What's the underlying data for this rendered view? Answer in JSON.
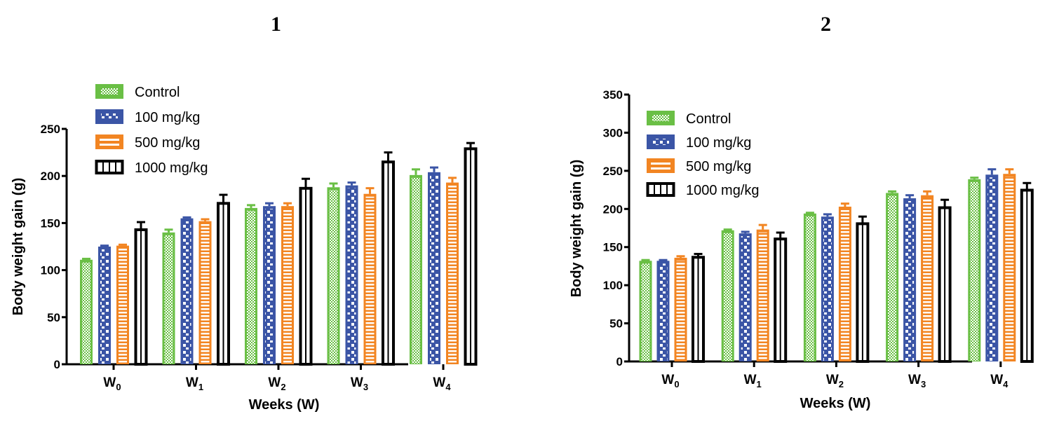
{
  "panels": [
    {
      "label": "1"
    },
    {
      "label": "2"
    }
  ],
  "series_style": [
    {
      "name": "Control",
      "color": "#6abf45",
      "pattern": "checker"
    },
    {
      "name": "100 mg/kg",
      "color": "#3b55a6",
      "pattern": "squares"
    },
    {
      "name": "500 mg/kg",
      "color": "#f28522",
      "pattern": "hstripes"
    },
    {
      "name": "1000 mg/kg",
      "color": "#000000",
      "pattern": "vstripes"
    }
  ],
  "chart_data": [
    {
      "type": "bar",
      "title": "1",
      "xlabel": "Weeks (W)",
      "ylabel": "Body weight gain (g)",
      "categories": [
        {
          "base": "W",
          "sub": "0"
        },
        {
          "base": "W",
          "sub": "1"
        },
        {
          "base": "W",
          "sub": "2"
        },
        {
          "base": "W",
          "sub": "3"
        },
        {
          "base": "W",
          "sub": "4"
        }
      ],
      "ylim": [
        0,
        250
      ],
      "yticks": [
        0,
        50,
        100,
        150,
        200,
        250
      ],
      "legend_position": "top-left",
      "grid": false,
      "series": [
        {
          "name": "Control",
          "values": [
            111,
            140,
            166,
            188,
            201
          ],
          "errors": [
            1,
            3,
            3,
            4,
            6
          ]
        },
        {
          "name": "100 mg/kg",
          "values": [
            125,
            155,
            168,
            190,
            204
          ],
          "errors": [
            1,
            1,
            3,
            3,
            5
          ]
        },
        {
          "name": "500 mg/kg",
          "values": [
            126,
            152,
            168,
            181,
            193
          ],
          "errors": [
            1,
            2,
            3,
            6,
            5
          ]
        },
        {
          "name": "1000 mg/kg",
          "values": [
            144,
            172,
            188,
            216,
            230
          ],
          "errors": [
            7,
            8,
            9,
            9,
            5
          ]
        }
      ]
    },
    {
      "type": "bar",
      "title": "2",
      "xlabel": "Weeks (W)",
      "ylabel": "Body weight gain (g)",
      "categories": [
        {
          "base": "W",
          "sub": "0"
        },
        {
          "base": "W",
          "sub": "1"
        },
        {
          "base": "W",
          "sub": "2"
        },
        {
          "base": "W",
          "sub": "3"
        },
        {
          "base": "W",
          "sub": "4"
        }
      ],
      "ylim": [
        0,
        350
      ],
      "yticks": [
        0,
        50,
        100,
        150,
        200,
        250,
        300,
        350
      ],
      "legend_position": "top-left",
      "grid": false,
      "series": [
        {
          "name": "Control",
          "values": [
            132,
            172,
            194,
            221,
            239
          ],
          "errors": [
            1,
            1,
            1,
            2,
            2
          ]
        },
        {
          "name": "100 mg/kg",
          "values": [
            132,
            168,
            190,
            214,
            245
          ],
          "errors": [
            1,
            2,
            3,
            4,
            7
          ]
        },
        {
          "name": "500 mg/kg",
          "values": [
            136,
            173,
            203,
            218,
            246
          ],
          "errors": [
            2,
            6,
            4,
            5,
            6
          ]
        },
        {
          "name": "1000 mg/kg",
          "values": [
            138,
            162,
            182,
            203,
            226
          ],
          "errors": [
            3,
            7,
            8,
            9,
            8
          ]
        }
      ]
    }
  ]
}
